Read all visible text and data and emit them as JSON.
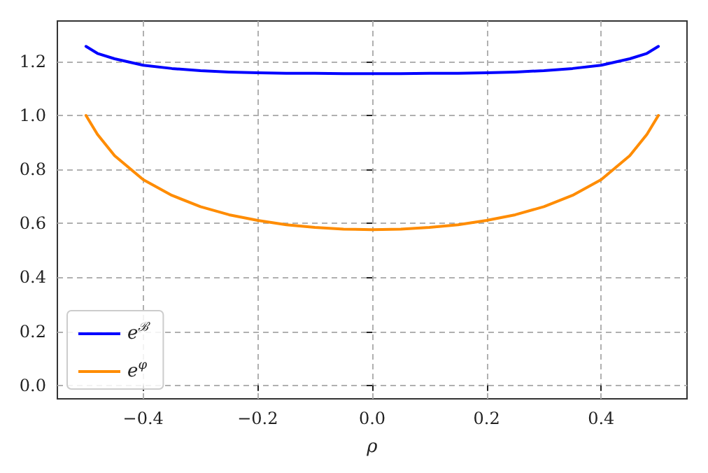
{
  "chart_data": {
    "type": "line",
    "xlabel": "ρ",
    "x": [
      -0.5,
      -0.48,
      -0.45,
      -0.4,
      -0.35,
      -0.3,
      -0.25,
      -0.2,
      -0.15,
      -0.1,
      -0.05,
      0,
      0.05,
      0.1,
      0.15,
      0.2,
      0.25,
      0.3,
      0.35,
      0.4,
      0.45,
      0.48,
      0.5
    ],
    "series": [
      {
        "name": "e$^{ℬ}$",
        "color": "#0000ff",
        "values": [
          1.256,
          1.23,
          1.21,
          1.186,
          1.174,
          1.166,
          1.161,
          1.158,
          1.156,
          1.156,
          1.155,
          1.155,
          1.155,
          1.156,
          1.156,
          1.158,
          1.161,
          1.166,
          1.174,
          1.186,
          1.21,
          1.23,
          1.256
        ]
      },
      {
        "name": "e$^{φ}$",
        "color": "#ff8c00",
        "values": [
          1.0,
          0.93,
          0.851,
          0.762,
          0.704,
          0.662,
          0.632,
          0.611,
          0.595,
          0.585,
          0.579,
          0.577,
          0.579,
          0.585,
          0.595,
          0.611,
          0.632,
          0.662,
          0.704,
          0.762,
          0.851,
          0.93,
          1.0
        ]
      }
    ],
    "xlim": [
      -0.55,
      0.55
    ],
    "ylim": [
      -0.05,
      1.35
    ],
    "xticks": [
      {
        "value": -0.4,
        "label": "−0.4"
      },
      {
        "value": -0.2,
        "label": "−0.2"
      },
      {
        "value": 0,
        "label": "0.0"
      },
      {
        "value": 0.2,
        "label": "0.2"
      },
      {
        "value": 0.4,
        "label": "0.4"
      }
    ],
    "yticks": [
      {
        "value": 0,
        "label": "0.0"
      },
      {
        "value": 0.2,
        "label": "0.2"
      },
      {
        "value": 0.4,
        "label": "0.4"
      },
      {
        "value": 0.6,
        "label": "0.6"
      },
      {
        "value": 0.8,
        "label": "0.8"
      },
      {
        "value": 1.0,
        "label": "1.0"
      },
      {
        "value": 1.2,
        "label": "1.2"
      }
    ],
    "grid": true,
    "legend": "bottom left"
  }
}
